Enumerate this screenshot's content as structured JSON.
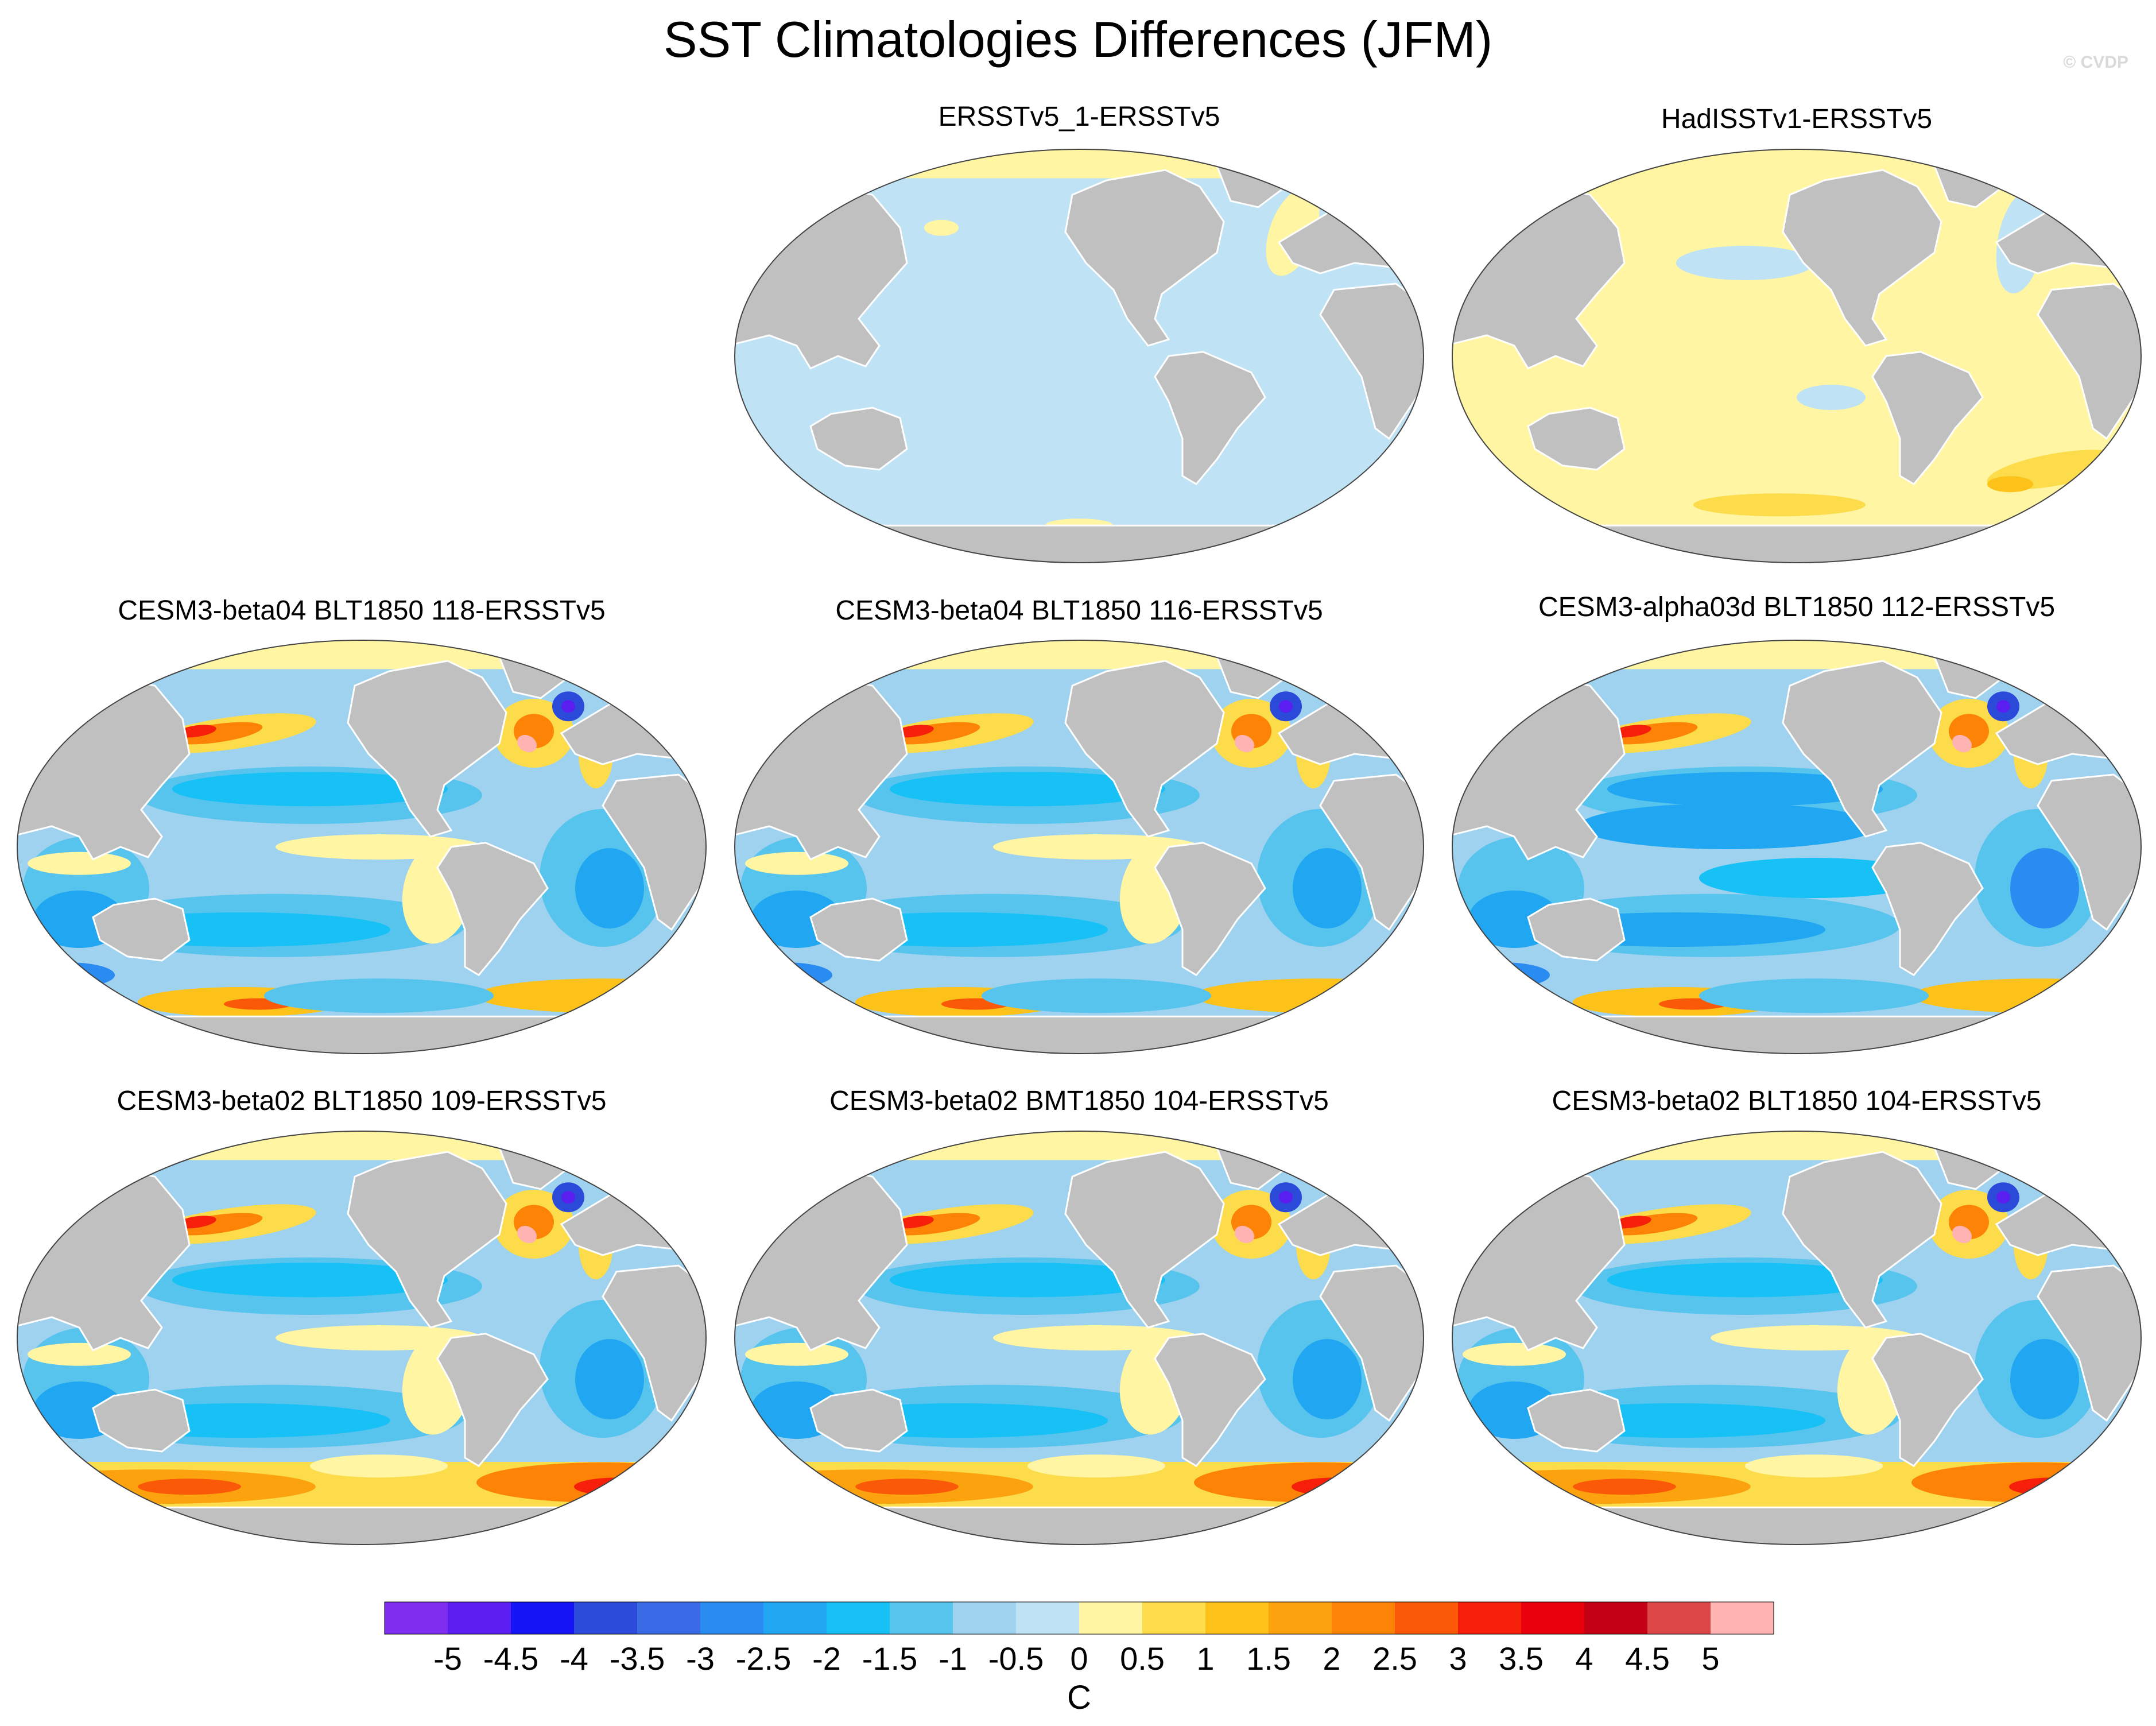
{
  "title": "SST Climatologies Differences (JFM)",
  "watermark": "© CVDP",
  "chart_data": {
    "type": "heatmap",
    "projection": "robinson-like world map",
    "variable": "SST difference",
    "season": "JFM",
    "units": "C",
    "levels": [
      -5,
      -4.5,
      -4,
      -3.5,
      -3,
      -2.5,
      -2,
      -1.5,
      -1,
      -0.5,
      0,
      0.5,
      1,
      1.5,
      2,
      2.5,
      3,
      3.5,
      4,
      4.5,
      5
    ],
    "level_labels": [
      "-5",
      "-4.5",
      "-4",
      "-3.5",
      "-3",
      "-2.5",
      "-2",
      "-1.5",
      "-1",
      "-0.5",
      "0",
      "0.5",
      "1",
      "1.5",
      "2",
      "2.5",
      "3",
      "3.5",
      "4",
      "4.5",
      "5"
    ],
    "colors": [
      "#7f2ef0",
      "#5a1ff0",
      "#1414f5",
      "#2c4ad9",
      "#3a6ae6",
      "#2a8cf0",
      "#21a7f2",
      "#17c0f5",
      "#57c4ee",
      "#9fd2ef",
      "#bfe3f5",
      "#fff5a3",
      "#fcdc4a",
      "#fcc21a",
      "#fca20f",
      "#fc8306",
      "#fa5a08",
      "#f51f0a",
      "#e8000d",
      "#c40014",
      "#dd4747",
      "#ffb3b3"
    ],
    "colorbar_label": "C",
    "panels": [
      {
        "title": "ERSSTv5_1-ERSSTv5",
        "pattern": "uniform_negative"
      },
      {
        "title": "HadISSTv1-ERSSTv5",
        "pattern": "uniform_positive"
      },
      {
        "title": "CESM3-beta04 BLT1850 118-ERSSTv5",
        "pattern": "model"
      },
      {
        "title": "CESM3-beta04 BLT1850 116-ERSSTv5",
        "pattern": "model"
      },
      {
        "title": "CESM3-alpha03d BLT1850 112-ERSSTv5",
        "pattern": "model_cold"
      },
      {
        "title": "CESM3-beta02 BLT1850 109-ERSSTv5",
        "pattern": "model_so_warm"
      },
      {
        "title": "CESM3-beta02 BMT1850 104-ERSSTv5",
        "pattern": "model_so_warm"
      },
      {
        "title": "CESM3-beta02 BLT1850 104-ERSSTv5",
        "pattern": "model_so_warm"
      }
    ]
  }
}
